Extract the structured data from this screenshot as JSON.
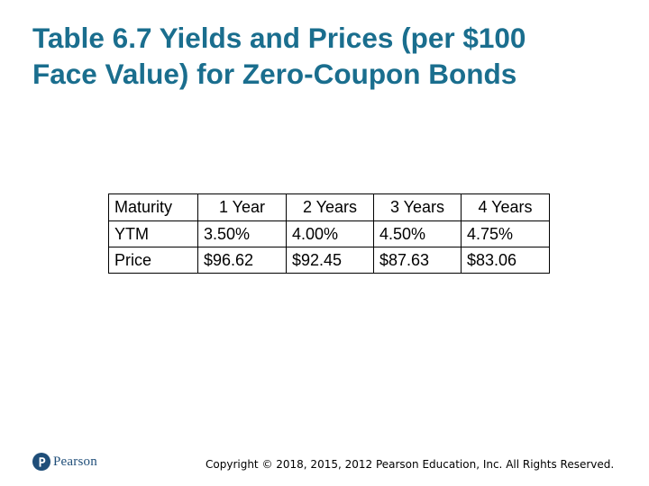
{
  "title": {
    "line1": "Table 6.7 Yields and Prices (per $100",
    "line2": "Face Value) for Zero-Coupon Bonds"
  },
  "table": {
    "headers": [
      "Maturity",
      "1 Year",
      "2 Years",
      "3 Years",
      "4 Years"
    ],
    "rows": [
      [
        "YTM",
        "3.50%",
        "4.00%",
        "4.50%",
        "4.75%"
      ],
      [
        "Price",
        "$96.62",
        "$92.45",
        "$87.63",
        "$83.06"
      ]
    ]
  },
  "footer": {
    "logo_text": "Pearson",
    "logo_icon": "pearson-logo-icon",
    "copyright": "Copyright © 2018, 2015, 2012 Pearson Education, Inc. All Rights Reserved."
  },
  "colors": {
    "title": "#1a6e8e",
    "logo": "#1f4e79",
    "text": "#000000"
  }
}
